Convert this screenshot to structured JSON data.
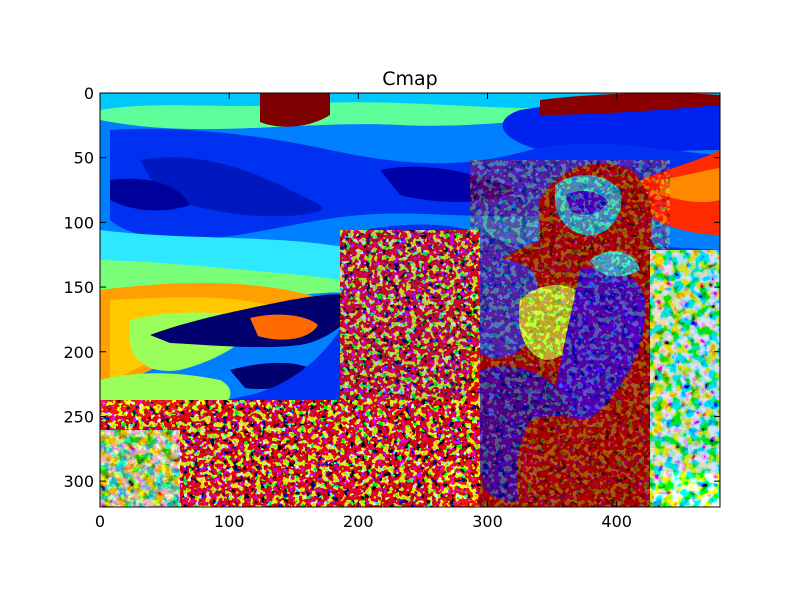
{
  "chart_data": {
    "type": "heatmap",
    "title": "Cmap",
    "xlabel": "",
    "ylabel": "",
    "colormap": "jet",
    "xlim": [
      0,
      480
    ],
    "ylim": [
      320,
      0
    ],
    "x_ticks": [
      0,
      100,
      200,
      300,
      400
    ],
    "y_ticks": [
      0,
      50,
      100,
      150,
      200,
      250,
      300
    ],
    "grid": false,
    "legend": "none",
    "image": {
      "width": 480,
      "height": 320,
      "subject": "posterized photo of a gorilla sitting on a rock under a cloudy sky, rendered with the jet colormap"
    },
    "palette": [
      "#00007f",
      "#0000ff",
      "#0080ff",
      "#00ffff",
      "#80ff80",
      "#ffff00",
      "#ff8000",
      "#ff0000",
      "#7f0000"
    ]
  }
}
